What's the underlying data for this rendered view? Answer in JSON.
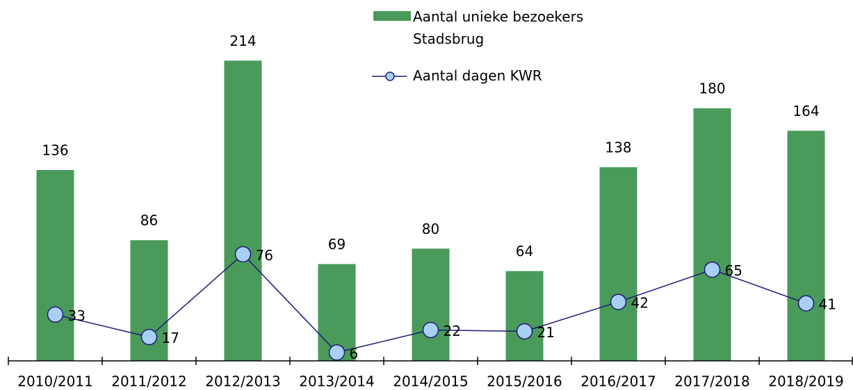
{
  "chart_data": {
    "type": "bar-line",
    "categories": [
      "2010/2011",
      "2011/2012",
      "2012/2013",
      "2013/2014",
      "2014/2015",
      "2015/2016",
      "2016/2017",
      "2017/2018",
      "2018/2019"
    ],
    "series": [
      {
        "name": "Aantal unieke bezoekers Stadsbrug",
        "type": "bar",
        "color": "#4a9a5a",
        "values": [
          136,
          86,
          214,
          69,
          80,
          64,
          138,
          180,
          164
        ]
      },
      {
        "name": "Aantal dagen KWR",
        "type": "line",
        "color": "#1c1c78",
        "marker_color": "#a8d0f4",
        "values": [
          33,
          17,
          76,
          6,
          22,
          21,
          42,
          65,
          41
        ]
      }
    ],
    "ylim": [
      0,
      230
    ]
  }
}
